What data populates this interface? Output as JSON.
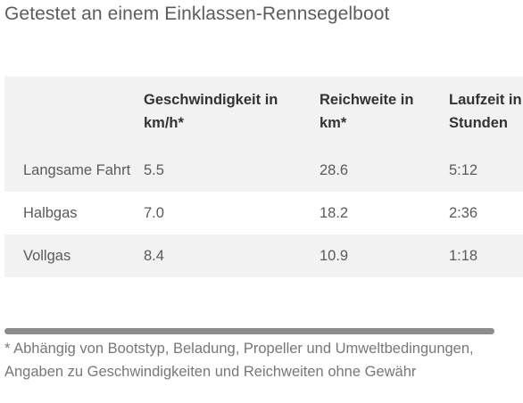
{
  "page": {
    "title": "Getestet an einem Einklassen-Rennsegelboot"
  },
  "table": {
    "headers": [
      "",
      "Geschwindigkeit in km/h*",
      "Reichweite in km*",
      "Laufzeit in Stunden"
    ],
    "rows": [
      [
        "Langsame Fahrt",
        "5.5",
        "28.6",
        "5:12"
      ],
      [
        "Halbgas",
        "7.0",
        "18.2",
        "2:36"
      ],
      [
        "Vollgas",
        "8.4",
        "10.9",
        "1:18"
      ]
    ]
  },
  "footnote": "* Abhängig von Bootstyp, Beladung, Propeller und Umweltbedingungen, Angaben zu Geschwindigkeiten und Reichweiten ohne Gewähr",
  "colors": {
    "header_background": "#f2f2f2",
    "scrollbar": "#8c8c8c"
  }
}
